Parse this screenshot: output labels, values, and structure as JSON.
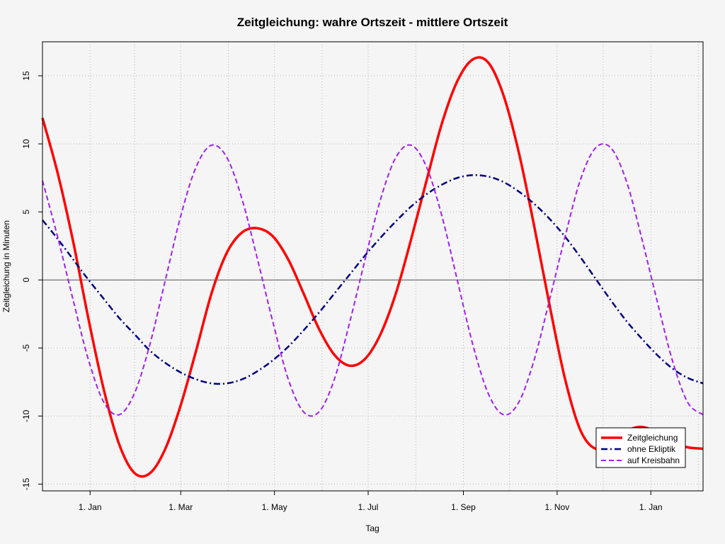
{
  "chart_data": {
    "type": "line",
    "title": "Zeitgleichung: wahre Ortszeit - mittlere Ortszeit",
    "xlabel": "Tag",
    "ylabel": "Zeitgleichung in Minuten",
    "x_range_days": [
      -30,
      400
    ],
    "ylim": [
      -15.5,
      17.5
    ],
    "grid": true,
    "legend_position": "bottom-right",
    "x_ticks": [
      {
        "day": 1,
        "label": "1. Jan"
      },
      {
        "day": 60,
        "label": "1. Mar"
      },
      {
        "day": 121,
        "label": "1. May"
      },
      {
        "day": 182,
        "label": "1. Jul"
      },
      {
        "day": 244,
        "label": "1. Sep"
      },
      {
        "day": 305,
        "label": "1. Nov"
      },
      {
        "day": 366,
        "label": "1. Jan"
      }
    ],
    "y_ticks": [
      -15,
      -10,
      -5,
      0,
      5,
      10,
      15
    ],
    "series": [
      {
        "name": "Zeitgleichung",
        "color": "#ff0000",
        "dash": "solid",
        "x": [
          -30,
          -20,
          -10,
          0,
          10,
          20,
          30,
          40,
          50,
          60,
          70,
          80,
          90,
          100,
          110,
          120,
          130,
          140,
          150,
          160,
          170,
          180,
          190,
          200,
          210,
          220,
          230,
          240,
          250,
          260,
          270,
          280,
          290,
          300,
          310,
          320,
          330,
          340,
          350,
          360,
          370,
          380,
          390,
          400
        ],
        "values": [
          11.9,
          7.8,
          2.8,
          -2.9,
          -8.1,
          -12.1,
          -14.2,
          -14.2,
          -12.4,
          -9.2,
          -5.2,
          -1.0,
          2.0,
          3.5,
          3.8,
          3.2,
          1.5,
          -1.0,
          -3.6,
          -5.5,
          -6.3,
          -5.8,
          -4.0,
          -1.0,
          3.0,
          7.3,
          11.5,
          14.6,
          16.2,
          16.0,
          13.6,
          9.4,
          4.0,
          -1.8,
          -7.2,
          -11.0,
          -12.4,
          -11.9,
          -11.1,
          -10.8,
          -11.2,
          -11.9,
          -12.3,
          -12.4
        ]
      },
      {
        "name": "ohne Ekliptik",
        "color": "#000080",
        "dash": "dotdash",
        "x": [
          -30,
          -20,
          -10,
          0,
          10,
          20,
          30,
          40,
          50,
          60,
          70,
          80,
          90,
          100,
          110,
          120,
          130,
          140,
          150,
          160,
          170,
          180,
          190,
          200,
          210,
          220,
          230,
          240,
          250,
          260,
          270,
          280,
          290,
          300,
          310,
          320,
          330,
          340,
          350,
          360,
          370,
          380,
          390,
          400
        ],
        "values": [
          4.4,
          3.0,
          1.5,
          0.0,
          -1.4,
          -2.8,
          -4.0,
          -5.2,
          -6.1,
          -6.8,
          -7.3,
          -7.6,
          -7.6,
          -7.3,
          -6.7,
          -5.9,
          -4.9,
          -3.7,
          -2.4,
          -1.0,
          0.4,
          1.8,
          3.1,
          4.3,
          5.4,
          6.3,
          7.0,
          7.5,
          7.7,
          7.6,
          7.2,
          6.5,
          5.6,
          4.5,
          3.2,
          1.7,
          0.1,
          -1.5,
          -3.0,
          -4.3,
          -5.5,
          -6.5,
          -7.2,
          -7.6
        ]
      },
      {
        "name": "auf Kreisbahn",
        "color": "#a020f0",
        "dash": "dashed",
        "x": [
          -30,
          -20,
          -10,
          0,
          10,
          20,
          30,
          40,
          50,
          60,
          70,
          80,
          90,
          100,
          110,
          120,
          130,
          140,
          150,
          160,
          170,
          180,
          190,
          200,
          210,
          220,
          230,
          240,
          250,
          260,
          270,
          280,
          290,
          300,
          310,
          320,
          330,
          340,
          350,
          360,
          370,
          380,
          390,
          400
        ],
        "values": [
          7.3,
          3.1,
          -1.5,
          -5.9,
          -9.0,
          -9.9,
          -8.3,
          -4.7,
          0.0,
          4.7,
          8.3,
          9.9,
          9.0,
          5.9,
          1.5,
          -3.1,
          -7.3,
          -9.7,
          -9.7,
          -7.3,
          -3.1,
          1.5,
          5.9,
          9.0,
          9.9,
          8.3,
          4.7,
          0.0,
          -4.7,
          -8.3,
          -9.9,
          -9.0,
          -5.9,
          -1.5,
          3.1,
          7.3,
          9.7,
          9.7,
          7.3,
          3.1,
          -1.5,
          -5.9,
          -9.0,
          -9.9
        ]
      }
    ],
    "x_grid_days": [
      1,
      30,
      60,
      91,
      121,
      152,
      182,
      213,
      244,
      274,
      305,
      335,
      366,
      397
    ]
  }
}
